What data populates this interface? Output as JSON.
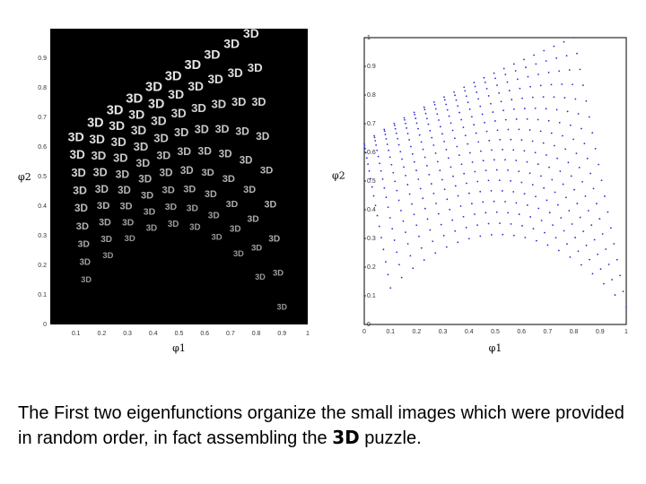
{
  "chart_data": [
    {
      "type": "scatter",
      "title": "",
      "xlabel": "φ1",
      "ylabel": "φ2",
      "xlim": [
        0,
        1
      ],
      "ylim": [
        0,
        1
      ],
      "x_ticks": [
        "0.1",
        "0.2",
        "0.3",
        "0.4",
        "0.5",
        "0.6",
        "0.7",
        "0.8",
        "0.9",
        "1"
      ],
      "y_ticks": [
        "0",
        "0.1",
        "0.2",
        "0.3",
        "0.4",
        "0.5",
        "0.6",
        "0.7",
        "0.8",
        "0.9"
      ],
      "background": "#000000",
      "marker": "3D image tiles",
      "tile_label": "3D",
      "tile_color": "#e6e6e6",
      "grid": false,
      "grid_rows": 9,
      "grid_cols": 10,
      "shape": "distorted sheet arching from φ1≈0.15 to φ1≈0.9, top edge rising from φ2≈0.62 to φ2≈0.97, bottom edge falling from φ2≈0.33 to φ2≈0.05 on both sides"
    },
    {
      "type": "scatter",
      "title": "",
      "xlabel": "φ1",
      "ylabel": "φ2",
      "xlim": [
        0,
        1
      ],
      "ylim": [
        0,
        1
      ],
      "x_ticks": [
        "0",
        "0.1",
        "0.2",
        "0.3",
        "0.4",
        "0.5",
        "0.6",
        "0.7",
        "0.8",
        "0.9",
        "1"
      ],
      "y_ticks": [
        "0",
        "0.1",
        "0.2",
        "0.3",
        "0.4",
        "0.5",
        "0.6",
        "0.7",
        "0.8",
        "0.9",
        "1"
      ],
      "background": "#ffffff",
      "marker_color": "#2b2bd6",
      "grid": false,
      "grid_rows": 18,
      "grid_cols": 22,
      "corners": {
        "top_left": [
          0.0,
          0.63
        ],
        "top_right": [
          0.8,
          1.0
        ],
        "bottom_left": [
          0.1,
          0.0
        ],
        "bottom_right": [
          1.0,
          0.1
        ]
      },
      "top_edge_peak": [
        0.8,
        1.0
      ],
      "bottom_edge_arch_peak": [
        0.5,
        0.3
      ]
    }
  ],
  "caption": {
    "before": "The First two eigenfunctions organize the small images which were provided in random order, in fact assembling the ",
    "bold": "3D",
    "after": " puzzle."
  }
}
